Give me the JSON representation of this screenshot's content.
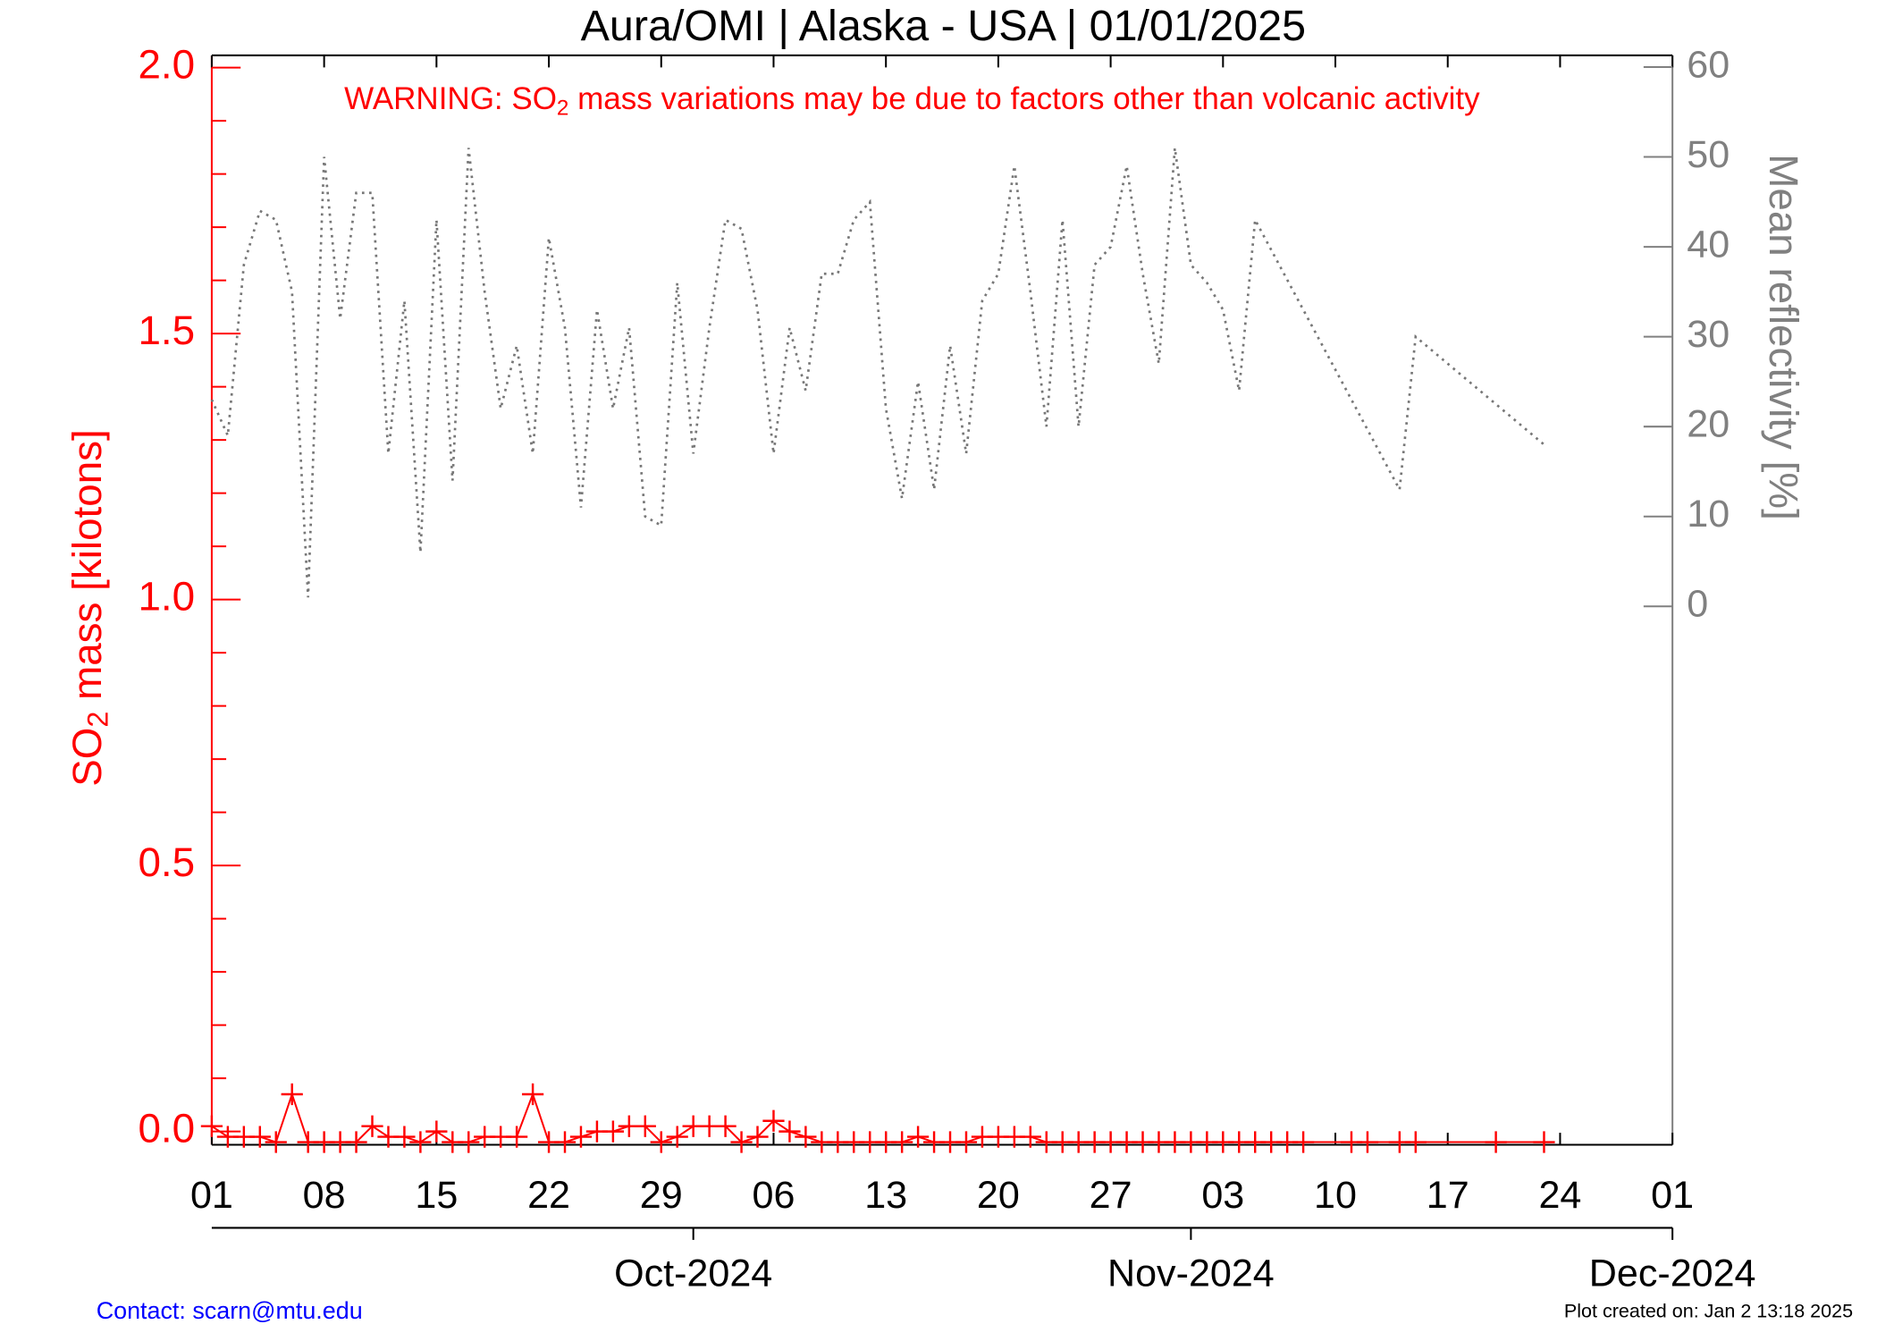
{
  "chart_data": {
    "type": "line",
    "title": "Aura/OMI | Alaska - USA | 01/01/2025",
    "warning": {
      "before": "WARNING: SO",
      "sub": "2",
      "after": " mass variations may be due to factors other than volcanic activity"
    },
    "ylabel": {
      "before": "SO",
      "sub": "2",
      "after": " mass [kilotons]"
    },
    "y2label": "Mean reflectivity [%]",
    "contact": "Contact: scarn@mtu.edu",
    "created": "Plot created on: Jan  2 13:18 2025",
    "xlim": [
      "2024-09-01",
      "2024-12-01"
    ],
    "xticks": [
      {
        "value": "2024-09-01",
        "label": "01"
      },
      {
        "value": "2024-09-08",
        "label": "08"
      },
      {
        "value": "2024-09-15",
        "label": "15"
      },
      {
        "value": "2024-09-22",
        "label": "22"
      },
      {
        "value": "2024-09-29",
        "label": "29"
      },
      {
        "value": "2024-10-06",
        "label": "06"
      },
      {
        "value": "2024-10-13",
        "label": "13"
      },
      {
        "value": "2024-10-20",
        "label": "20"
      },
      {
        "value": "2024-10-27",
        "label": "27"
      },
      {
        "value": "2024-11-03",
        "label": "03"
      },
      {
        "value": "2024-11-10",
        "label": "10"
      },
      {
        "value": "2024-11-17",
        "label": "17"
      },
      {
        "value": "2024-11-24",
        "label": "24"
      },
      {
        "value": "2024-12-01",
        "label": "01"
      }
    ],
    "month_ticks": [
      {
        "value": "2024-10-01",
        "label": "Oct-2024"
      },
      {
        "value": "2024-11-01",
        "label": "Nov-2024"
      },
      {
        "value": "2024-12-01",
        "label": "Dec-2024"
      }
    ],
    "ylim": [
      -0.025,
      2.023
    ],
    "yticks": [
      {
        "value": 0,
        "label": "0.0"
      },
      0.5,
      {
        "value": 1,
        "label": "1.0"
      },
      1.5,
      {
        "value": 2,
        "label": "2.0"
      }
    ],
    "yminor_ticks": [
      0.1,
      0.2,
      0.3,
      0.4,
      0.6,
      0.7,
      0.8,
      0.9,
      1.1,
      1.2,
      1.3,
      1.4,
      1.6,
      1.7,
      1.8,
      1.9
    ],
    "y2lim": [
      -59.9,
      61.3
    ],
    "y2ticks": [
      0,
      10,
      20,
      30,
      40,
      50,
      60
    ],
    "series": [
      {
        "name": "SO2 mass",
        "color": "#ff0000",
        "marker": "+",
        "axis": "y",
        "x": [
          "2024-09-01",
          "2024-09-02",
          "2024-09-03",
          "2024-09-04",
          "2024-09-05",
          "2024-09-06",
          "2024-09-07",
          "2024-09-08",
          "2024-09-09",
          "2024-09-10",
          "2024-09-11",
          "2024-09-12",
          "2024-09-13",
          "2024-09-14",
          "2024-09-15",
          "2024-09-16",
          "2024-09-17",
          "2024-09-18",
          "2024-09-19",
          "2024-09-20",
          "2024-09-21",
          "2024-09-22",
          "2024-09-23",
          "2024-09-24",
          "2024-09-25",
          "2024-09-26",
          "2024-09-27",
          "2024-09-28",
          "2024-09-29",
          "2024-09-30",
          "2024-10-01",
          "2024-10-02",
          "2024-10-03",
          "2024-10-04",
          "2024-10-05",
          "2024-10-06",
          "2024-10-07",
          "2024-10-08",
          "2024-10-09",
          "2024-10-10",
          "2024-10-11",
          "2024-10-12",
          "2024-10-13",
          "2024-10-14",
          "2024-10-15",
          "2024-10-16",
          "2024-10-17",
          "2024-10-18",
          "2024-10-19",
          "2024-10-20",
          "2024-10-21",
          "2024-10-22",
          "2024-10-23",
          "2024-10-24",
          "2024-10-25",
          "2024-10-26",
          "2024-10-27",
          "2024-10-28",
          "2024-10-29",
          "2024-10-30",
          "2024-10-31",
          "2024-11-01",
          "2024-11-02",
          "2024-11-03",
          "2024-11-04",
          "2024-11-05",
          "2024-11-06",
          "2024-11-07",
          "2024-11-08",
          "2024-11-11",
          "2024-11-12",
          "2024-11-14",
          "2024-11-15",
          "2024-11-20",
          "2024-11-23"
        ],
        "values": [
          0.01,
          -0.01,
          -0.01,
          -0.01,
          -0.02,
          0.07,
          -0.02,
          -0.02,
          -0.02,
          -0.02,
          0.01,
          -0.01,
          -0.01,
          -0.02,
          0,
          -0.02,
          -0.02,
          -0.01,
          -0.01,
          -0.01,
          0.07,
          -0.02,
          -0.02,
          -0.01,
          0,
          0,
          0.01,
          0.01,
          -0.02,
          -0.01,
          0.01,
          0.01,
          0.01,
          -0.02,
          -0.01,
          0.02,
          0,
          -0.01,
          -0.02,
          -0.02,
          -0.02,
          -0.02,
          -0.02,
          -0.02,
          -0.01,
          -0.02,
          -0.02,
          -0.02,
          -0.01,
          -0.01,
          -0.01,
          -0.01,
          -0.02,
          -0.02,
          -0.02,
          -0.02,
          -0.02,
          -0.02,
          -0.02,
          -0.02,
          -0.02,
          -0.02,
          -0.02,
          -0.02,
          -0.02,
          -0.02,
          -0.02,
          -0.02,
          -0.02,
          -0.02,
          -0.02,
          -0.02,
          -0.02,
          -0.02,
          -0.02
        ]
      },
      {
        "name": "Mean reflectivity",
        "color": "#777777",
        "dashed": true,
        "axis": "y2",
        "x": [
          "2024-09-01",
          "2024-09-02",
          "2024-09-03",
          "2024-09-04",
          "2024-09-05",
          "2024-09-06",
          "2024-09-07",
          "2024-09-08",
          "2024-09-09",
          "2024-09-10",
          "2024-09-11",
          "2024-09-12",
          "2024-09-13",
          "2024-09-14",
          "2024-09-15",
          "2024-09-16",
          "2024-09-17",
          "2024-09-18",
          "2024-09-19",
          "2024-09-20",
          "2024-09-21",
          "2024-09-22",
          "2024-09-23",
          "2024-09-24",
          "2024-09-25",
          "2024-09-26",
          "2024-09-27",
          "2024-09-28",
          "2024-09-29",
          "2024-09-30",
          "2024-10-01",
          "2024-10-02",
          "2024-10-03",
          "2024-10-04",
          "2024-10-05",
          "2024-10-06",
          "2024-10-07",
          "2024-10-08",
          "2024-10-09",
          "2024-10-10",
          "2024-10-11",
          "2024-10-12",
          "2024-10-13",
          "2024-10-14",
          "2024-10-15",
          "2024-10-16",
          "2024-10-17",
          "2024-10-18",
          "2024-10-19",
          "2024-10-20",
          "2024-10-21",
          "2024-10-22",
          "2024-10-23",
          "2024-10-24",
          "2024-10-25",
          "2024-10-26",
          "2024-10-27",
          "2024-10-28",
          "2024-10-29",
          "2024-10-30",
          "2024-10-31",
          "2024-11-01",
          "2024-11-02",
          "2024-11-03",
          "2024-11-04",
          "2024-11-05",
          "2024-11-14",
          "2024-11-15",
          "2024-11-23"
        ],
        "values": [
          23,
          19,
          38,
          44,
          43,
          35,
          1,
          50,
          32,
          46,
          46,
          17,
          34,
          6,
          43,
          14,
          51,
          35,
          22,
          29,
          17,
          41,
          31,
          11,
          33,
          22,
          31,
          10,
          9,
          36,
          17,
          31,
          43,
          42,
          33,
          17,
          31,
          24,
          37,
          37,
          43,
          45,
          22,
          12,
          25,
          13,
          29,
          17,
          34,
          37,
          49,
          35,
          20,
          43,
          20,
          38,
          40,
          49,
          37,
          27,
          51,
          38,
          36,
          33,
          24,
          43,
          13,
          30,
          18
        ]
      }
    ]
  }
}
